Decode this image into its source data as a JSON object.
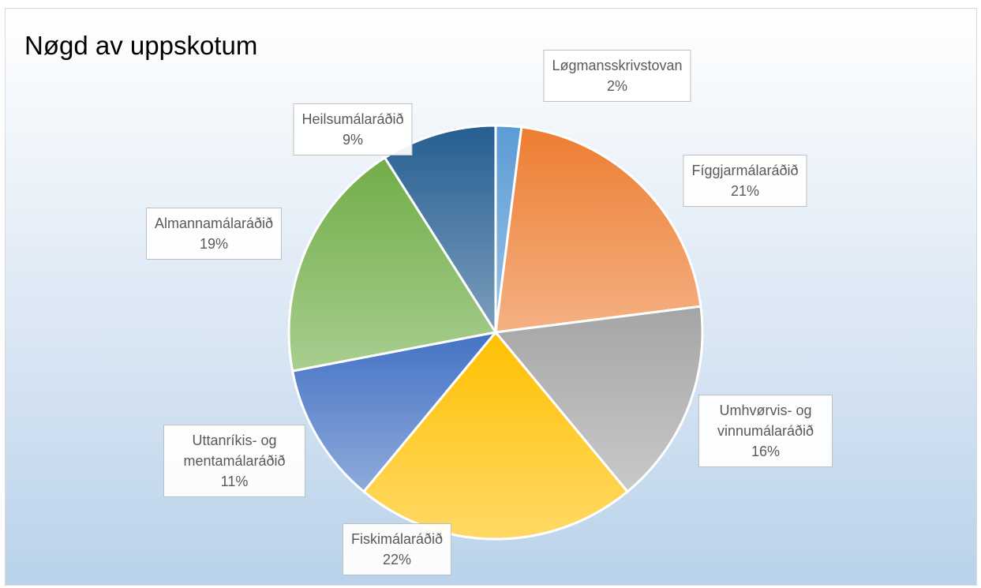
{
  "chart_data": {
    "type": "pie",
    "title": "Nøgd av uppskotum",
    "categories": [
      "Løgmansskrivstovan",
      "Fíggjarmálaráðið",
      "Umhvørvis- og vinnumálaráðið",
      "Fiskimálaráðið",
      "Uttanríkis- og mentamálaráðið",
      "Almannamálaráðið",
      "Heilsumálaráðið"
    ],
    "values": [
      2,
      21,
      16,
      22,
      11,
      19,
      9
    ],
    "value_labels": [
      "2%",
      "21%",
      "16%",
      "22%",
      "11%",
      "19%",
      "9%"
    ],
    "colors": [
      "#5b9bd5",
      "#ed7d31",
      "#a5a5a5",
      "#ffc000",
      "#4472c4",
      "#70ad47",
      "#255e91"
    ]
  }
}
